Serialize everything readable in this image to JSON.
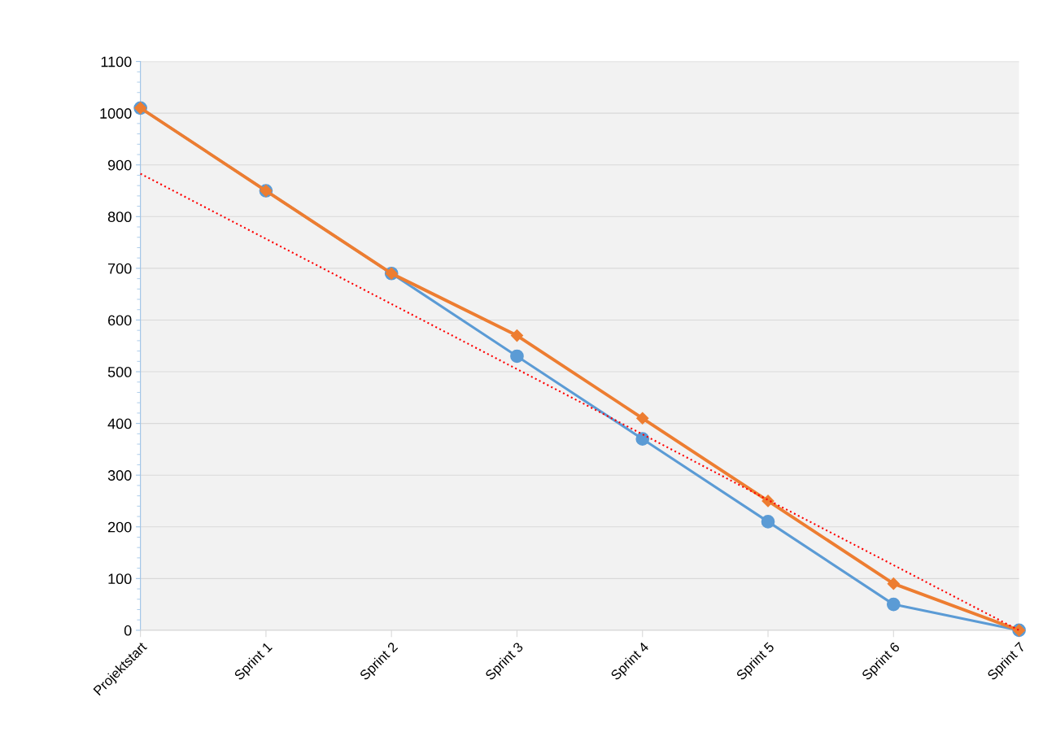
{
  "chart_data": {
    "type": "line",
    "categories": [
      "Projektstart",
      "Sprint 1",
      "Sprint 2",
      "Sprint 3",
      "Sprint 4",
      "Sprint 5",
      "Sprint 6",
      "Sprint 7"
    ],
    "series": [
      {
        "color": "#5b9bd5",
        "marker": "circle",
        "values": [
          1010,
          850,
          690,
          530,
          370,
          210,
          50,
          0
        ]
      },
      {
        "color": "#ed7d31",
        "marker": "diamond",
        "values": [
          1010,
          850,
          690,
          570,
          410,
          250,
          90,
          0
        ]
      },
      {
        "color": "#ff0000",
        "marker": "none",
        "line_style": "dotted",
        "values": [
          883,
          757,
          631,
          505,
          379,
          252,
          126,
          0
        ]
      }
    ],
    "ylim": [
      0,
      1100
    ],
    "yticks": [
      0,
      100,
      200,
      300,
      400,
      500,
      600,
      700,
      800,
      900,
      1000,
      1100
    ],
    "grid": "y"
  }
}
